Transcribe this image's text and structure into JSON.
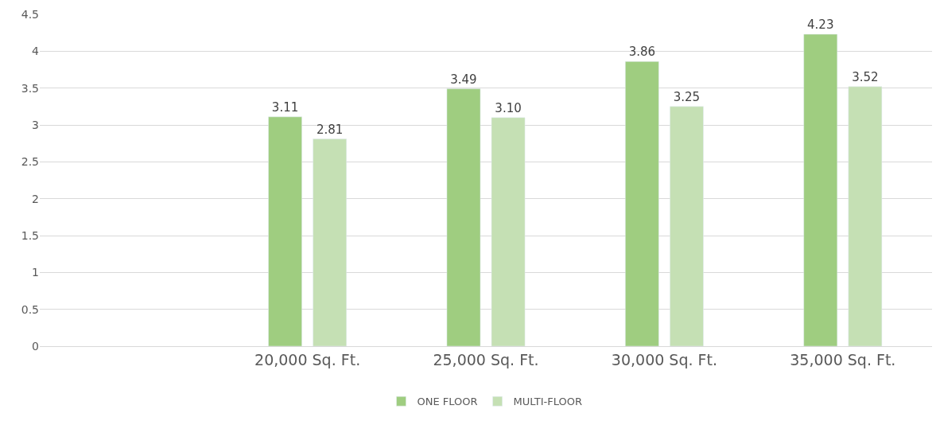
{
  "chart_data": {
    "type": "bar",
    "categories": [
      null,
      "20,000 Sq. Ft.",
      "25,000 Sq. Ft.",
      "30,000 Sq. Ft.",
      "35,000 Sq. Ft."
    ],
    "series": [
      {
        "name": "ONE FLOOR",
        "color": "#9fcd80",
        "values": [
          null,
          3.11,
          3.49,
          3.86,
          4.23
        ],
        "value_labels": [
          null,
          "3.11",
          "3.49",
          "3.86",
          "4.23"
        ]
      },
      {
        "name": "MULTI-FLOOR",
        "color": "#c5e0b4",
        "values": [
          null,
          2.81,
          3.1,
          3.25,
          3.52
        ],
        "value_labels": [
          null,
          "2.81",
          "3.10",
          "3.25",
          "3.52"
        ]
      }
    ],
    "ylim": [
      0,
      4.5
    ],
    "yticks": [
      0,
      0.5,
      1,
      1.5,
      2,
      2.5,
      3,
      3.5,
      4,
      4.5
    ],
    "grid": "y",
    "legend": "bottom"
  }
}
